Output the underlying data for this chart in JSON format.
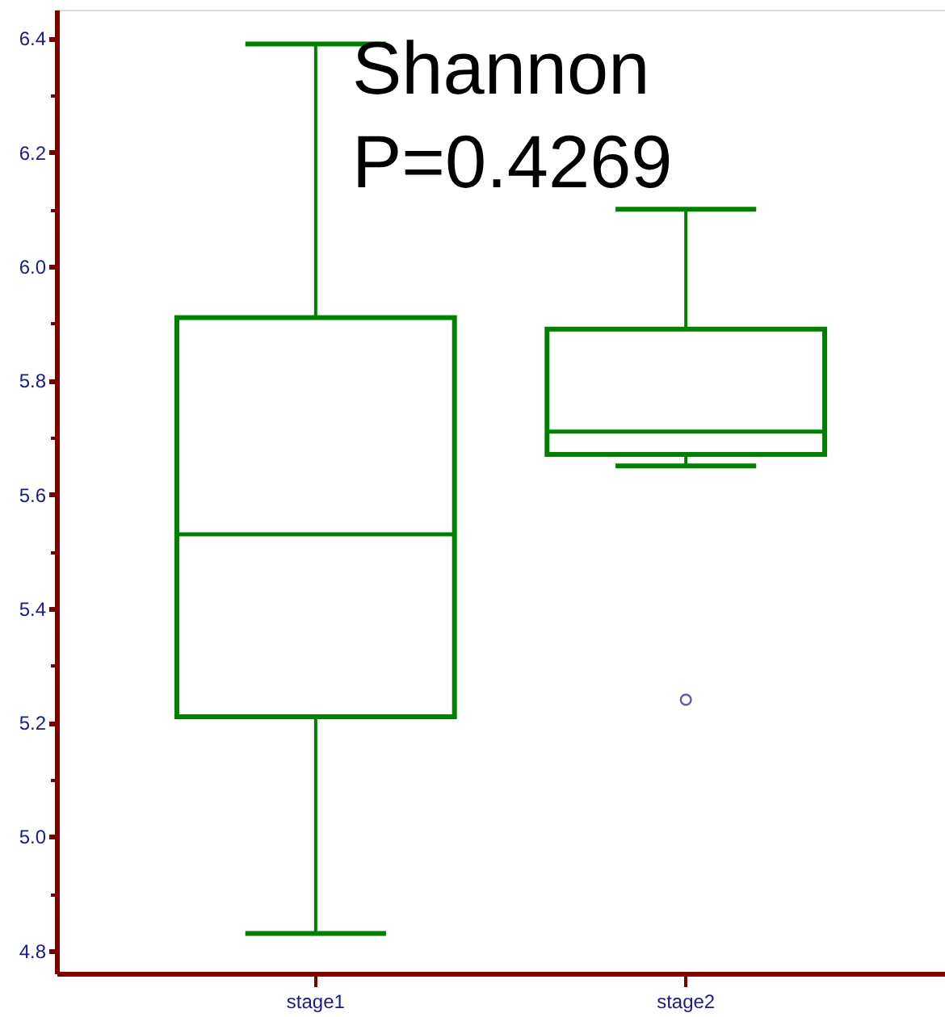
{
  "chart_data": {
    "type": "box",
    "categories": [
      "stage1",
      "stage2"
    ],
    "series": [
      {
        "color": "#008000",
        "boxes": [
          {
            "low": 4.83,
            "q1": 5.21,
            "median": 5.53,
            "q3": 5.91,
            "high": 6.39
          },
          {
            "low": 5.65,
            "q1": 5.67,
            "median": 5.71,
            "q3": 5.89,
            "high": 6.1,
            "outliers": [
              5.24
            ]
          }
        ]
      }
    ],
    "ylim": [
      4.76,
      6.45
    ],
    "yticks": [
      4.8,
      {
        "value": 4.9,
        "label": null
      },
      {
        "value": 5.0,
        "label": "5.0"
      },
      {
        "value": 5.1,
        "label": null
      },
      5.2,
      {
        "value": 5.3,
        "label": null
      },
      5.4,
      {
        "value": 5.5,
        "label": null
      },
      5.6,
      {
        "value": 5.7,
        "label": null
      },
      5.8,
      {
        "value": 5.9,
        "label": null
      },
      {
        "value": 6.0,
        "label": "6.0"
      },
      {
        "value": 6.1,
        "label": null
      },
      6.2,
      {
        "value": 6.3,
        "label": null
      },
      6.4
    ],
    "annotations": [
      "Shannon",
      "P=0.4269"
    ],
    "grid": false
  }
}
